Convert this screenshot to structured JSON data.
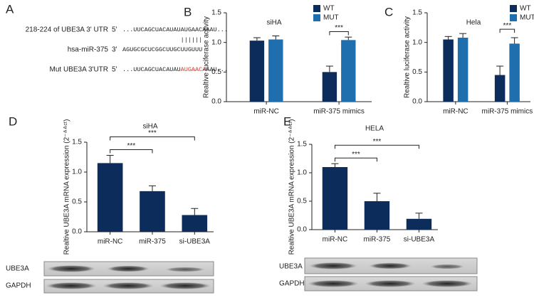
{
  "alignment": {
    "panel": "A",
    "rows": [
      {
        "label": "218-224 of UBE3A 3' UTR",
        "end": "5'",
        "parts": [
          "...UUCAGCUACAUAUAUGAACAAAU..."
        ]
      },
      {
        "label": "hsa-miR-375",
        "end": "3'",
        "parts": [
          "AGUGCGCUCGGCUUGCUUGUUU"
        ]
      },
      {
        "label": "Mut UBE3A 3'UTR",
        "end": "5'",
        "parts": [
          "...UUCAGCUACAUAU",
          "AUGAACA",
          "AAU..."
        ]
      }
    ],
    "pairing": "||||||",
    "mutation_color": "#d9342b"
  },
  "blots": [
    {
      "labels": [
        "UBE3A",
        "GAPDH"
      ]
    },
    {
      "labels": [
        "UBE3A",
        "GAPDH"
      ]
    }
  ],
  "chart_data": [
    {
      "type": "bar",
      "panel": "B",
      "title": "siHA",
      "y_label": "Realtive luciferase activity",
      "categories": [
        "miR-NC",
        "miR-375 mimics"
      ],
      "series": [
        {
          "name": "WT",
          "color": "#0c2c5c",
          "values": [
            1.03,
            0.5
          ],
          "errors": [
            0.05,
            0.1
          ]
        },
        {
          "name": "MUT",
          "color": "#1f6fae",
          "values": [
            1.05,
            1.04
          ],
          "errors": [
            0.06,
            0.05
          ]
        }
      ],
      "ylim": [
        0,
        1.5
      ],
      "yticks": [
        {
          "value": 0,
          "label": "0.0"
        },
        0.5,
        {
          "value": 1,
          "label": "1.0"
        },
        1.5
      ],
      "significance": [
        {
          "category": "miR-375 mimics",
          "between": [
            "WT",
            "MUT"
          ],
          "label": "***"
        }
      ]
    },
    {
      "type": "bar",
      "panel": "C",
      "title": "Hela",
      "y_label": "Realtive luciferase activity",
      "categories": [
        "miR-NC",
        "miR-375 mimics"
      ],
      "series": [
        {
          "name": "WT",
          "color": "#0c2c5c",
          "values": [
            1.05,
            0.45
          ],
          "errors": [
            0.05,
            0.15
          ]
        },
        {
          "name": "MUT",
          "color": "#1f6fae",
          "values": [
            1.08,
            0.98
          ],
          "errors": [
            0.07,
            0.1
          ]
        }
      ],
      "ylim": [
        0,
        1.5
      ],
      "yticks": [
        {
          "value": 0,
          "label": "0.0"
        },
        0.5,
        {
          "value": 1,
          "label": "1.0"
        },
        1.5
      ],
      "significance": [
        {
          "category": "miR-375 mimics",
          "between": [
            "WT",
            "MUT"
          ],
          "label": "***"
        }
      ]
    },
    {
      "type": "bar",
      "panel": "D",
      "title": "siHA",
      "y_label": "Realtive UBE3A mRNA expression (2⁻ᐞᐞᶜᵗ)",
      "categories": [
        "miR-NC",
        "miR-375",
        "si-UBE3A"
      ],
      "series": [
        {
          "color": "#0c2c5c",
          "values": [
            1.15,
            0.68,
            0.28
          ],
          "errors": [
            0.13,
            0.09,
            0.11
          ]
        }
      ],
      "ylim": [
        0,
        1.5
      ],
      "yticks": [
        {
          "value": 0,
          "label": "0.0"
        },
        0.5,
        {
          "value": 1,
          "label": "1.0"
        },
        1.5
      ],
      "significance": [
        {
          "between": [
            "miR-NC",
            "miR-375"
          ],
          "label": "***"
        },
        {
          "between": [
            "miR-NC",
            "si-UBE3A"
          ],
          "label": "***"
        }
      ]
    },
    {
      "type": "bar",
      "panel": "E",
      "title": "HELA",
      "y_label": "Realtive UBE3A mRNA expression (2⁻ᐞᐞᶜᵗ)",
      "categories": [
        "miR-NC",
        "miR-375",
        "si-UBE3A"
      ],
      "series": [
        {
          "color": "#0c2c5c",
          "values": [
            1.1,
            0.5,
            0.19
          ],
          "errors": [
            0.06,
            0.14,
            0.1
          ]
        }
      ],
      "ylim": [
        0,
        1.5
      ],
      "yticks": [
        {
          "value": 0,
          "label": "0.0"
        },
        0.5,
        {
          "value": 1,
          "label": "1.0"
        },
        1.5
      ],
      "significance": [
        {
          "between": [
            "miR-NC",
            "miR-375"
          ],
          "label": "***"
        },
        {
          "between": [
            "miR-NC",
            "si-UBE3A"
          ],
          "label": "***"
        }
      ]
    }
  ]
}
